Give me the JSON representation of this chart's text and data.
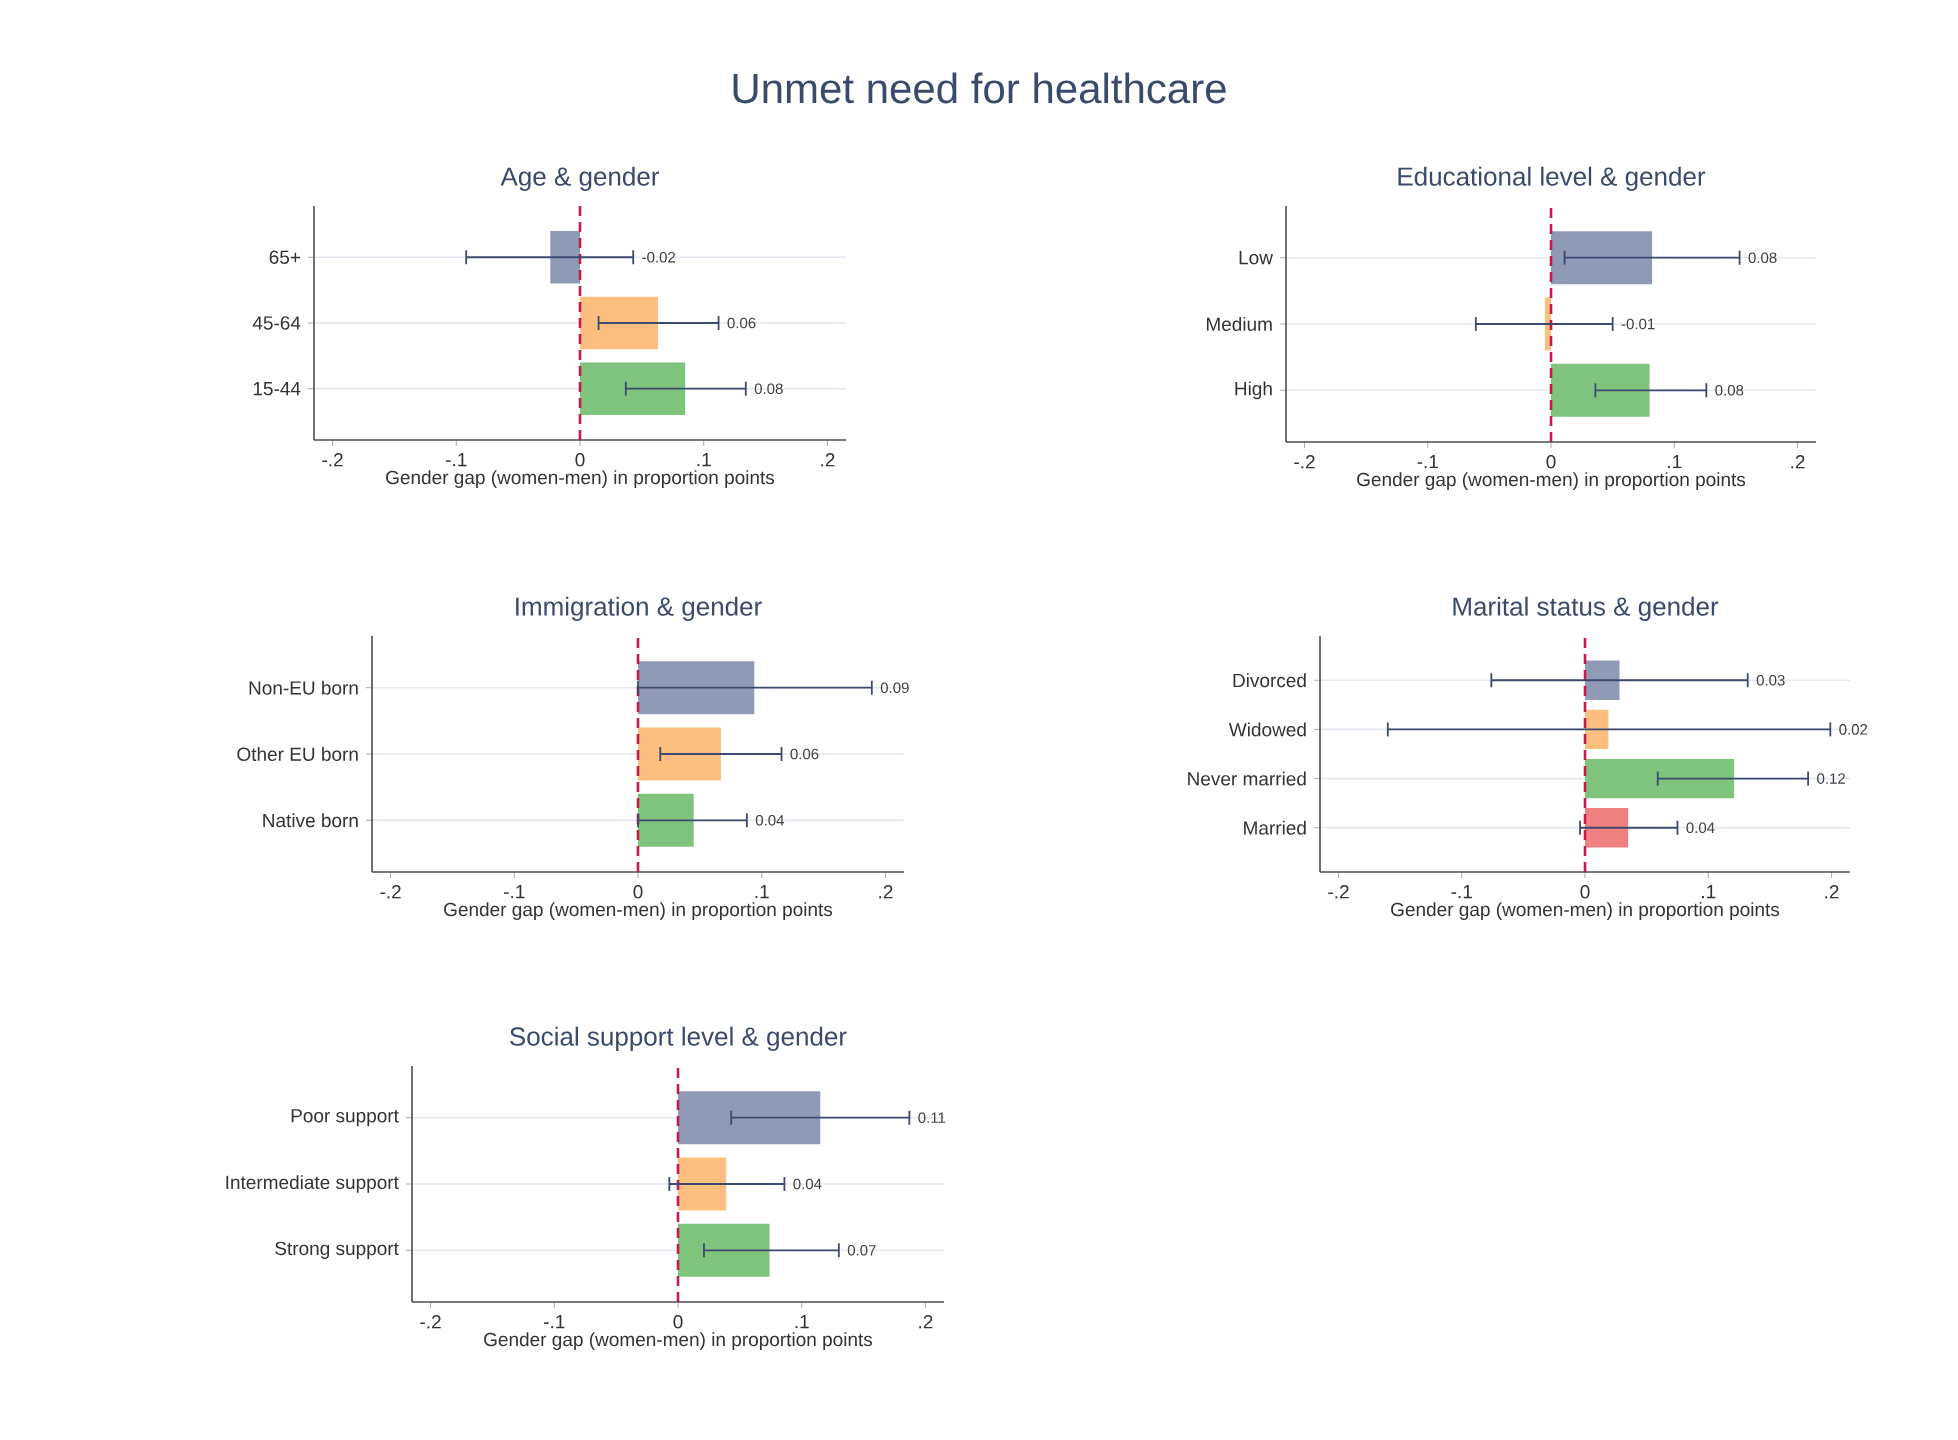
{
  "chart_data": [
    {
      "type": "other",
      "title": "Unmet need for healthcare"
    },
    {
      "type": "bar",
      "orientation": "horizontal",
      "title": "Age & gender",
      "xlabel": "Gender gap (women-men) in proportion points",
      "categories": [
        "65+",
        "45-64",
        "15-44"
      ],
      "values": [
        -0.024,
        0.063,
        0.085
      ],
      "colors": [
        "#8f9bb6",
        "#fdbf7f",
        "#7fc47c"
      ],
      "errors": [
        [
          -0.092,
          0.043
        ],
        [
          0.015,
          0.112
        ],
        [
          0.037,
          0.134
        ]
      ],
      "annotations": [
        {
          "text": "-0.02",
          "x": 0.043,
          "y": "65+"
        },
        {
          "text": "0.06",
          "x": 0.112,
          "y": "45-64"
        },
        {
          "text": "0.08",
          "x": 0.134,
          "y": "15-44"
        }
      ],
      "xlim": [
        -0.215,
        0.215
      ],
      "xticks": [
        {
          "value": -0.2,
          "label": "-.2"
        },
        {
          "value": -0.1,
          "label": "-.1"
        },
        0,
        {
          "value": 0.1,
          "label": ".1"
        },
        {
          "value": 0.2,
          "label": ".2"
        }
      ],
      "grid": "y",
      "ref_lines": [
        {
          "axis": "x",
          "value": 0,
          "color": "#c8194b",
          "line_style": "dashed"
        }
      ]
    },
    {
      "type": "bar",
      "orientation": "horizontal",
      "title": "Educational level & gender",
      "xlabel": "Gender gap (women-men) in proportion points",
      "categories": [
        "Low",
        "Medium",
        "High"
      ],
      "values": [
        0.082,
        -0.005,
        0.08
      ],
      "colors": [
        "#8f9bb6",
        "#fdbf7f",
        "#7fc47c"
      ],
      "errors": [
        [
          0.011,
          0.153
        ],
        [
          -0.061,
          0.05
        ],
        [
          0.036,
          0.126
        ]
      ],
      "annotations": [
        {
          "text": "0.08",
          "x": 0.153,
          "y": "Low"
        },
        {
          "text": "-0.01",
          "x": 0.05,
          "y": "Medium"
        },
        {
          "text": "0.08",
          "x": 0.126,
          "y": "High"
        }
      ],
      "xlim": [
        -0.215,
        0.215
      ],
      "xticks": [
        {
          "value": -0.2,
          "label": "-.2"
        },
        {
          "value": -0.1,
          "label": "-.1"
        },
        0,
        {
          "value": 0.1,
          "label": ".1"
        },
        {
          "value": 0.2,
          "label": ".2"
        }
      ],
      "grid": "y",
      "ref_lines": [
        {
          "axis": "x",
          "value": 0,
          "color": "#c8194b",
          "line_style": "dashed"
        }
      ]
    },
    {
      "type": "bar",
      "orientation": "horizontal",
      "title": "Immigration & gender",
      "xlabel": "Gender gap (women-men) in proportion points",
      "categories": [
        "Non-EU born",
        "Other EU  born",
        "Native born"
      ],
      "values": [
        0.094,
        0.067,
        0.045
      ],
      "colors": [
        "#8f9bb6",
        "#fdbf7f",
        "#7fc47c"
      ],
      "errors": [
        [
          0.0,
          0.189
        ],
        [
          0.018,
          0.116
        ],
        [
          0.0,
          0.088
        ]
      ],
      "annotations": [
        {
          "text": "0.09",
          "x": 0.189,
          "y": "Non-EU born"
        },
        {
          "text": "0.06",
          "x": 0.116,
          "y": "Other EU  born"
        },
        {
          "text": "0.04",
          "x": 0.088,
          "y": "Native born"
        }
      ],
      "xlim": [
        -0.215,
        0.215
      ],
      "xticks": [
        {
          "value": -0.2,
          "label": "-.2"
        },
        {
          "value": -0.1,
          "label": "-.1"
        },
        0,
        {
          "value": 0.1,
          "label": ".1"
        },
        {
          "value": 0.2,
          "label": ".2"
        }
      ],
      "grid": "y",
      "ref_lines": [
        {
          "axis": "x",
          "value": 0,
          "color": "#c8194b",
          "line_style": "dashed"
        }
      ]
    },
    {
      "type": "bar",
      "orientation": "horizontal",
      "title": "Marital status & gender",
      "xlabel": "Gender gap (women-men) in proportion points",
      "categories": [
        "Divorced",
        "Widowed",
        "Never married",
        "Married"
      ],
      "values": [
        0.028,
        0.019,
        0.121,
        0.035
      ],
      "colors": [
        "#8f9bb6",
        "#fdbf7f",
        "#7fc47c",
        "#f08080"
      ],
      "errors": [
        [
          -0.076,
          0.132
        ],
        [
          -0.16,
          0.199
        ],
        [
          0.059,
          0.181
        ],
        [
          -0.004,
          0.075
        ]
      ],
      "annotations": [
        {
          "text": "0.03",
          "x": 0.132,
          "y": "Divorced"
        },
        {
          "text": "0.02",
          "x": 0.199,
          "y": "Widowed"
        },
        {
          "text": "0.12",
          "x": 0.181,
          "y": "Never married"
        },
        {
          "text": "0.04",
          "x": 0.075,
          "y": "Married"
        }
      ],
      "xlim": [
        -0.215,
        0.215
      ],
      "xticks": [
        {
          "value": -0.2,
          "label": "-.2"
        },
        {
          "value": -0.1,
          "label": "-.1"
        },
        0,
        {
          "value": 0.1,
          "label": ".1"
        },
        {
          "value": 0.2,
          "label": ".2"
        }
      ],
      "grid": "y",
      "ref_lines": [
        {
          "axis": "x",
          "value": 0,
          "color": "#c8194b",
          "line_style": "dashed"
        }
      ]
    },
    {
      "type": "bar",
      "orientation": "horizontal",
      "title": "Social support level & gender",
      "xlabel": "Gender gap (women-men) in proportion points",
      "categories": [
        "Poor support",
        "Intermediate support",
        "Strong support"
      ],
      "values": [
        0.115,
        0.039,
        0.074
      ],
      "colors": [
        "#8f9bb6",
        "#fdbf7f",
        "#7fc47c"
      ],
      "errors": [
        [
          0.043,
          0.187
        ],
        [
          -0.007,
          0.086
        ],
        [
          0.021,
          0.13
        ]
      ],
      "annotations": [
        {
          "text": "0.11",
          "x": 0.187,
          "y": "Poor support"
        },
        {
          "text": "0.04",
          "x": 0.086,
          "y": "Intermediate support"
        },
        {
          "text": "0.07",
          "x": 0.13,
          "y": "Strong support"
        }
      ],
      "xlim": [
        -0.215,
        0.215
      ],
      "xticks": [
        {
          "value": -0.2,
          "label": "-.2"
        },
        {
          "value": -0.1,
          "label": "-.1"
        },
        0,
        {
          "value": 0.1,
          "label": ".1"
        },
        {
          "value": 0.2,
          "label": ".2"
        }
      ],
      "grid": "y",
      "ref_lines": [
        {
          "axis": "x",
          "value": 0,
          "color": "#c8194b",
          "line_style": "dashed"
        }
      ]
    }
  ]
}
